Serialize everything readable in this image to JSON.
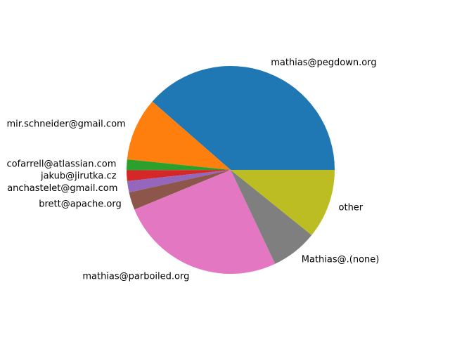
{
  "chart_data": {
    "type": "pie",
    "title": "",
    "start_angle_deg": 0,
    "direction": "counterclockwise",
    "slices": [
      {
        "label": "mathias@pegdown.org",
        "value": 39.3,
        "color": "#1f77b4"
      },
      {
        "label": "mir.schneider@gmail.com",
        "value": 10.0,
        "color": "#ff7f0e"
      },
      {
        "label": "cofarrell@atlassian.com",
        "value": 1.7,
        "color": "#2ca02c"
      },
      {
        "label": "jakub@jirutka.cz",
        "value": 1.7,
        "color": "#d62728"
      },
      {
        "label": "anchastelet@gmail.com",
        "value": 1.8,
        "color": "#9467bd"
      },
      {
        "label": "brett@apache.org",
        "value": 2.8,
        "color": "#8c564b"
      },
      {
        "label": "mathias@parboiled.org",
        "value": 26.3,
        "color": "#e377c2"
      },
      {
        "label": "Mathias@.(none)",
        "value": 7.3,
        "color": "#7f7f7f"
      },
      {
        "label": "other",
        "value": 11.0,
        "color": "#bcbd22"
      }
    ]
  }
}
